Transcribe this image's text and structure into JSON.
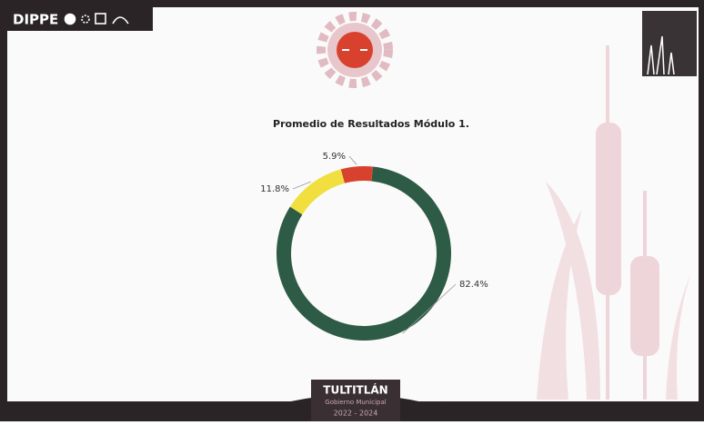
{
  "header": {
    "brand": "DIPPE"
  },
  "footer": {
    "title": "TULTITLÁN",
    "subtitle": "Gobierno Municipal",
    "years": "2022 - 2024"
  },
  "chart_data": {
    "type": "donut",
    "title": "Promedio de Resultados Módulo 1.",
    "values": [
      82.4,
      11.8,
      5.9
    ],
    "value_labels": [
      "82.4%",
      "11.8%",
      "5.9%"
    ],
    "colors": [
      "#2e5b46",
      "#f0df3e",
      "#d9412f"
    ]
  }
}
